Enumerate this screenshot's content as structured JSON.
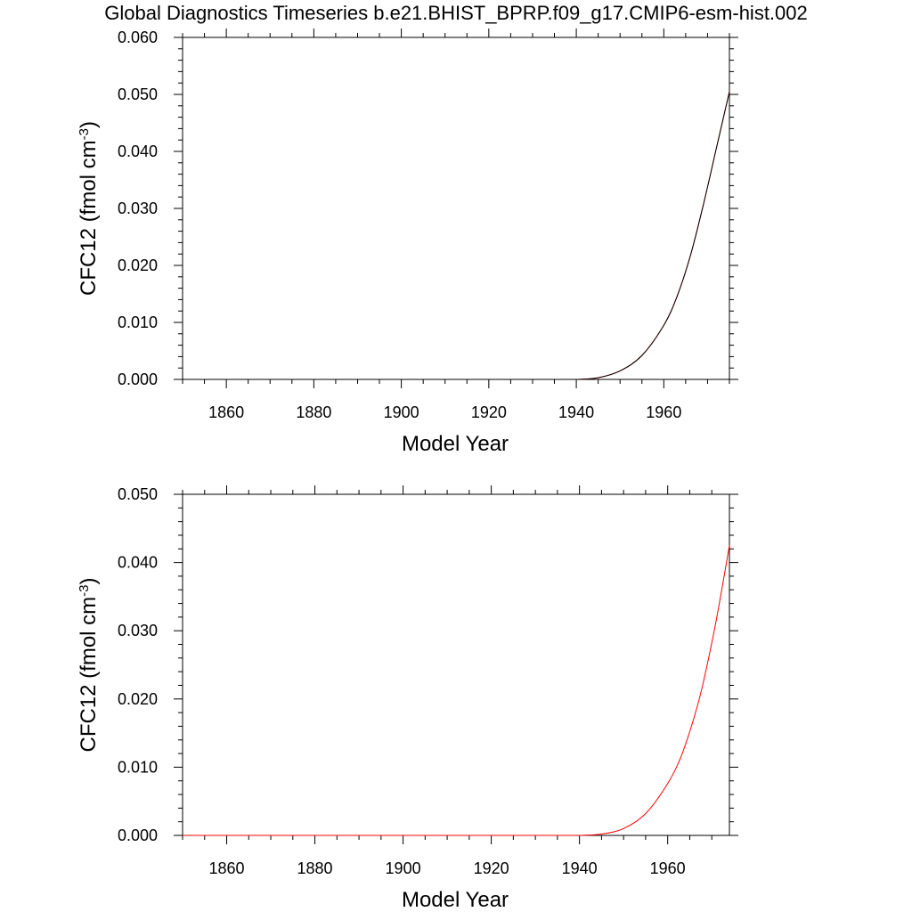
{
  "page": {
    "title": "Global Diagnostics Timeseries b.e21.BHIST_BPRP.f09_g17.CMIP6-esm-hist.002"
  },
  "colors": {
    "frame": "#000000",
    "series_black": "#000000",
    "series_red": "#ff0000"
  },
  "chart_data": [
    {
      "type": "line",
      "xlabel": "Model Year",
      "ylabel_main": "CFC12 (fmol cm",
      "ylabel_sup": "-3",
      "ylabel_close": ")",
      "xlim": [
        1850,
        1975
      ],
      "ylim": [
        0.0,
        0.06
      ],
      "x_ticks": [
        1860,
        1880,
        1900,
        1920,
        1940,
        1960
      ],
      "y_ticks": [
        "0.000",
        "0.010",
        "0.020",
        "0.030",
        "0.040",
        "0.050",
        "0.060"
      ],
      "y_tick_values": [
        0.0,
        0.01,
        0.02,
        0.03,
        0.04,
        0.05,
        0.06
      ],
      "grid": false,
      "series": [
        {
          "color": "#ff0000",
          "x": [
            1850,
            1900,
            1935,
            1940,
            1945,
            1950,
            1955,
            1960,
            1963,
            1966,
            1969,
            1972,
            1975
          ],
          "y": [
            0.0,
            0.0,
            0.0,
            0.0,
            0.0003,
            0.0015,
            0.0042,
            0.0095,
            0.0145,
            0.0215,
            0.0305,
            0.0405,
            0.0505
          ]
        },
        {
          "color": "#000000",
          "x": [
            1850,
            1900,
            1935,
            1940,
            1945,
            1950,
            1955,
            1960,
            1963,
            1966,
            1969,
            1972,
            1975
          ],
          "y": [
            0.0,
            0.0,
            0.0,
            0.0,
            0.0003,
            0.0015,
            0.0042,
            0.0095,
            0.0145,
            0.0215,
            0.0305,
            0.0405,
            0.0505
          ]
        }
      ]
    },
    {
      "type": "line",
      "xlabel": "Model Year",
      "ylabel_main": "CFC12 (fmol cm",
      "ylabel_sup": "-3",
      "ylabel_close": ")",
      "xlim": [
        1850,
        1974
      ],
      "ylim": [
        0.0,
        0.05
      ],
      "x_ticks": [
        1860,
        1880,
        1900,
        1920,
        1940,
        1960
      ],
      "y_ticks": [
        "0.000",
        "0.010",
        "0.020",
        "0.030",
        "0.040",
        "0.050"
      ],
      "y_tick_values": [
        0.0,
        0.01,
        0.02,
        0.03,
        0.04,
        0.05
      ],
      "grid": false,
      "series": [
        {
          "color": "#ff0000",
          "x": [
            1850,
            1900,
            1935,
            1940,
            1945,
            1950,
            1955,
            1960,
            1963,
            1966,
            1968,
            1971,
            1974
          ],
          "y": [
            0.0,
            0.0,
            0.0,
            0.0,
            0.0002,
            0.001,
            0.0032,
            0.0076,
            0.0115,
            0.0173,
            0.0222,
            0.0315,
            0.0425
          ]
        }
      ]
    }
  ]
}
